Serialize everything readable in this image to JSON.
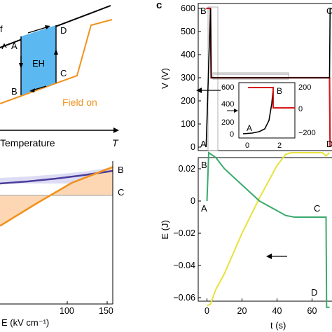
{
  "panel_c_label": "c",
  "colors": {
    "black_line": "#000000",
    "orange": "#f0921e",
    "blue_fill": "#5bb8f0",
    "red": "#d7191c",
    "green": "#3aaa6e",
    "yellow": "#e8e23a",
    "purple": "#4b3d9a",
    "lavender_fill": "#dcdcf5",
    "peach_fill": "#fdd7b4",
    "gray_line": "#9e9e9e"
  },
  "chart_data": [
    {
      "type": "line",
      "panel": "top-left (partial)",
      "xlabel": "Temperature",
      "x_symbol": "T",
      "labels": {
        "A": "A",
        "B": "B",
        "C": "C",
        "D": "D",
        "cycle": "EH",
        "field_on": "Field on",
        "f_fragment": "f"
      },
      "series": [
        {
          "values": "upper branch (black), linear increasing with T"
        },
        {
          "name": "Field on",
          "values": "lower branch (orange), linear increasing with a steep jump"
        }
      ]
    },
    {
      "type": "line",
      "panel": "bottom-left (partial)",
      "xlabel": "E (kV cm⁻¹)",
      "xticks": [
        "100",
        "150"
      ],
      "curve_labels": {
        "B": "B",
        "C": "C"
      },
      "series": [
        {
          "values": "B curve (purple)",
          "x": [
            0,
            50,
            100,
            157
          ],
          "y_rel": [
            0.8,
            0.83,
            0.88,
            0.93
          ]
        },
        {
          "values": "C curve (orange)",
          "x": [
            0,
            50,
            100,
            157
          ],
          "y_rel": [
            0.21,
            0.42,
            0.62,
            0.77
          ]
        }
      ]
    },
    {
      "type": "line",
      "panel": "c-top",
      "ylabel": "V (V)",
      "yticks": [
        "0",
        "100",
        "200",
        "300",
        "400",
        "500",
        "600"
      ],
      "ylim": [
        0,
        620
      ],
      "xlim": [
        -5,
        75
      ],
      "point_labels": {
        "A": "A",
        "B": "B",
        "C": "C",
        "D": "D"
      },
      "series": [
        {
          "values": "black voltage trace",
          "x": [
            -0.5,
            2,
            2.4,
            70,
            70.3
          ],
          "y": [
            0,
            600,
            300,
            300,
            600
          ]
        },
        {
          "values": "red voltage trace",
          "x": [
            -0.5,
            2,
            2.4,
            70,
            70.3
          ],
          "y": [
            600,
            600,
            300,
            300,
            0
          ]
        }
      ],
      "inset": {
        "left_yticks": [
          "0",
          "200",
          "400",
          "600"
        ],
        "right_yticks": [
          "200",
          "0",
          "−200"
        ],
        "xticks": [
          "0",
          "2"
        ],
        "labels": {
          "A": "A",
          "B": "B"
        }
      }
    },
    {
      "type": "line",
      "panel": "c-bottom",
      "xlabel": "t (s)",
      "ylabel": "E (J)",
      "xticks": [
        "0",
        "20",
        "40",
        "60"
      ],
      "yticks": [
        "0.02",
        "0",
        "−0.02",
        "−0.04",
        "−0.06"
      ],
      "xlim": [
        -5,
        75
      ],
      "ylim": [
        -0.07,
        0.035
      ],
      "point_labels": {
        "A": "A",
        "B": "B",
        "C": "C",
        "D": "D"
      },
      "series": [
        {
          "values": "green energy trace",
          "x": [
            0,
            1,
            5,
            10,
            20,
            30,
            40,
            45,
            50,
            60,
            66,
            68,
            68.3,
            70
          ],
          "y": [
            0,
            0.03,
            0.027,
            0.02,
            0.01,
            0.0,
            -0.006,
            -0.009,
            -0.01,
            -0.01,
            -0.01,
            -0.01,
            -0.066,
            -0.066
          ]
        },
        {
          "values": "yellow energy trace",
          "x": [
            0,
            2,
            5,
            10,
            20,
            30,
            40,
            45,
            48,
            60,
            66,
            68,
            70
          ],
          "y": [
            -0.065,
            -0.064,
            -0.055,
            -0.045,
            -0.02,
            0.002,
            0.022,
            0.029,
            0.03,
            0.03,
            0.03,
            0.028,
            0.03
          ]
        }
      ]
    }
  ]
}
